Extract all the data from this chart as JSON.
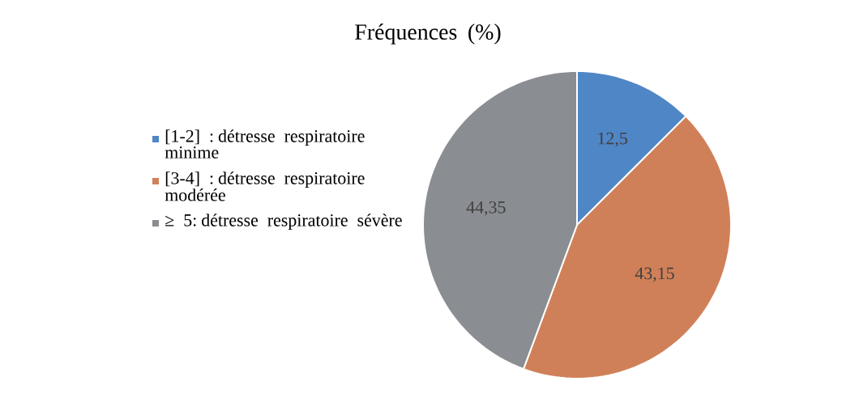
{
  "chart_data": {
    "type": "pie",
    "title": "Fréquences (%)",
    "categories": [
      "[1-2] : détresse respiratoire minime",
      "[3-4] : détresse respiratoire modérée",
      "≥ 5: détresse respiratoire sévère"
    ],
    "values": [
      12.5,
      43.15,
      44.35
    ],
    "value_labels": [
      "12,5",
      "43,15",
      "44,35"
    ],
    "colors": [
      "#4f86c6",
      "#d08058",
      "#8a8d91"
    ],
    "legend": "left"
  }
}
